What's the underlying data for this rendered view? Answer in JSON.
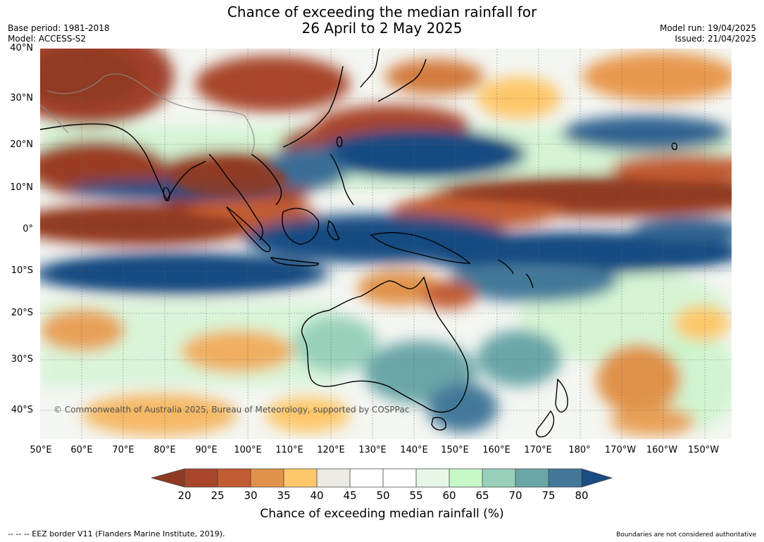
{
  "header": {
    "title_line1": "Chance of exceeding the median rainfall for",
    "title_line2": "26 April to 2 May 2025",
    "base_period": "Base period: 1981-2018",
    "model": "Model: ACCESS-S2",
    "model_run": "Model run: 19/04/2025",
    "issued": "Issued: 21/04/2025"
  },
  "map": {
    "latitude_labels": [
      "40°N",
      "30°N",
      "20°N",
      "10°N",
      "0°",
      "10°S",
      "20°S",
      "30°S",
      "40°S"
    ],
    "longitude_labels": [
      "50°E",
      "60°E",
      "70°E",
      "80°E",
      "90°E",
      "100°E",
      "110°E",
      "120°E",
      "130°E",
      "140°E",
      "150°E",
      "160°E",
      "170°E",
      "180°",
      "170°W",
      "160°W",
      "150°W"
    ],
    "copyright": "© Commonwealth of Australia 2025, Bureau of Meteorology, supported by COSPPac"
  },
  "colorbar": {
    "labels": [
      "20",
      "25",
      "30",
      "35",
      "40",
      "45",
      "50",
      "55",
      "60",
      "65",
      "70",
      "75",
      "80"
    ],
    "colors": [
      "#8f3a22",
      "#a8452a",
      "#c25c30",
      "#e0924a",
      "#fdc76a",
      "#eceae5",
      "#ffffff",
      "#ffffff",
      "#e8f6e8",
      "#c8f8c8",
      "#98d0bb",
      "#6aa6a8",
      "#43789a",
      "#184c82"
    ],
    "title": "Chance of exceeding median rainfall (%)"
  },
  "footer": {
    "eez_note": "--  --  -- EEZ border V11 (Flanders Marine Institute, 2019).",
    "boundaries_note": "Boundaries are not considered authoritative"
  }
}
